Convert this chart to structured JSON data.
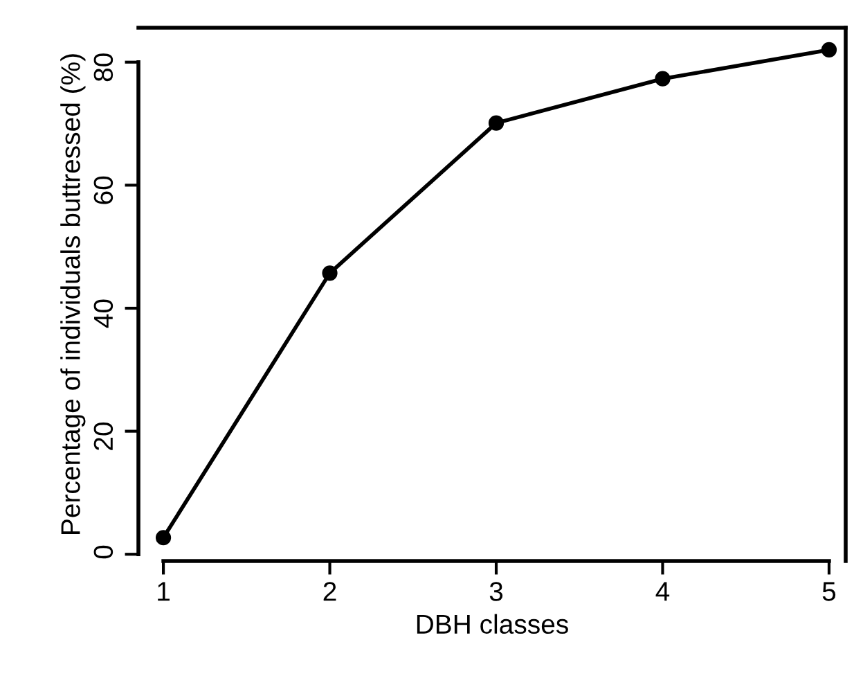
{
  "chart_data": {
    "type": "line",
    "xlabel": "DBH classes",
    "ylabel": "Percentage of individuals buttressed (%)",
    "x": [
      1,
      2,
      3,
      4,
      5
    ],
    "series": [
      {
        "color": "#000000",
        "values": [
          2.7,
          45.7,
          70.1,
          77.3,
          82.0
        ]
      }
    ],
    "xlim": [
      0.85,
      5.1
    ],
    "ylim": [
      -1.1,
      85.6
    ],
    "xticks": [
      1,
      2,
      3,
      4,
      5
    ],
    "yticks": [
      0,
      20,
      40,
      60,
      80
    ],
    "marker": "circle",
    "line_style": "solid",
    "grid": false,
    "legend": false
  }
}
